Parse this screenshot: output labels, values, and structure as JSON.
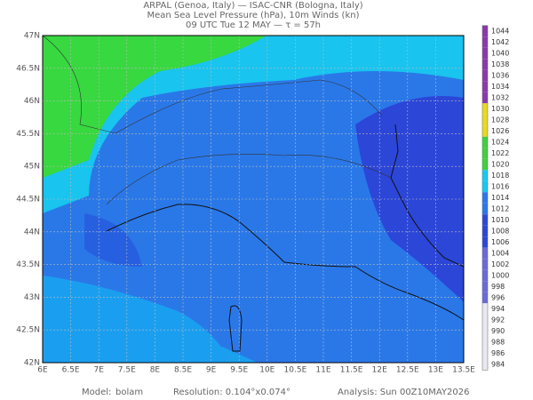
{
  "header": {
    "lines": [
      "ARPAL (Genoa, Italy)  —  ISAC-CNR (Bologna, Italy)",
      "Mean Sea Level Pressure (hPa), 10m Winds (kn)",
      "09 UTC Tue 12 MAY  —  τ = 57h"
    ]
  },
  "map": {
    "lon_labels": [
      "6E",
      "6.5E",
      "7E",
      "7.5E",
      "8E",
      "8.5E",
      "9E",
      "9.5E",
      "10E",
      "10.5E",
      "11E",
      "11.5E",
      "12E",
      "12.5E",
      "13E",
      "13.5E"
    ],
    "lat_labels": [
      "42N",
      "42.5N",
      "43N",
      "43.5N",
      "44N",
      "44.5N",
      "45N",
      "45.5N",
      "46N",
      "46.5N",
      "47N"
    ]
  },
  "colorbar": {
    "labels": [
      "1044",
      "1042",
      "1040",
      "1038",
      "1036",
      "1034",
      "1032",
      "1030",
      "1028",
      "1026",
      "1024",
      "1022",
      "1020",
      "1018",
      "1016",
      "1014",
      "1012",
      "1010",
      "1008",
      "1006",
      "1004",
      "1002",
      "1000",
      "998",
      "996",
      "994",
      "992",
      "990",
      "988",
      "986",
      "984"
    ]
  },
  "footer": {
    "model_label": "Model:",
    "model": "bolam",
    "resolution": "Resolution: 0.104°x0.074°",
    "analysis": "Analysis: Sun 00Z10MAY2026"
  }
}
